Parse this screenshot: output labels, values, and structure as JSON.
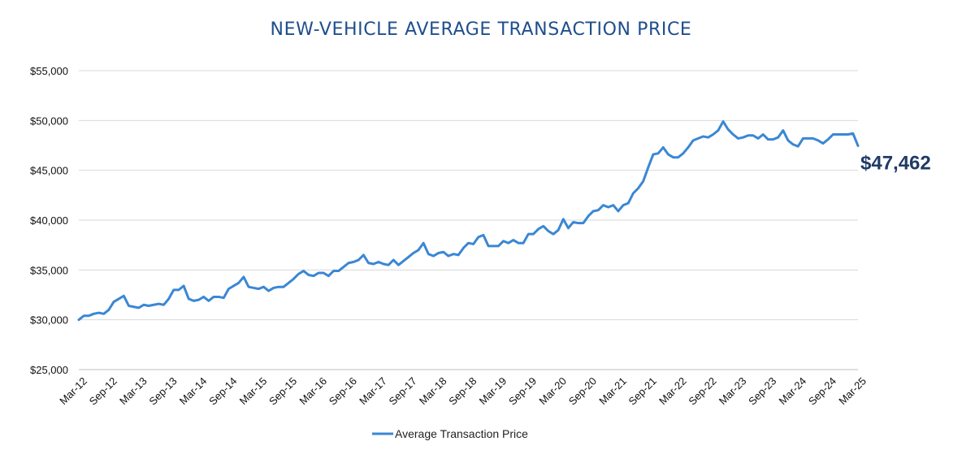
{
  "chart_data": {
    "type": "line",
    "title": "NEW-VEHICLE AVERAGE TRANSACTION PRICE",
    "xlabel": "",
    "ylabel": "",
    "ylim": [
      25000,
      55000
    ],
    "y_ticks": [
      25000,
      30000,
      35000,
      40000,
      45000,
      50000,
      55000
    ],
    "y_tick_labels": [
      "$25,000",
      "$30,000",
      "$35,000",
      "$40,000",
      "$45,000",
      "$50,000",
      "$55,000"
    ],
    "x_tick_labels": [
      "Mar-12",
      "Sep-12",
      "Mar-13",
      "Sep-13",
      "Mar-14",
      "Sep-14",
      "Mar-15",
      "Sep-15",
      "Mar-16",
      "Sep-16",
      "Mar-17",
      "Sep-17",
      "Mar-18",
      "Sep-18",
      "Mar-19",
      "Sep-19",
      "Mar-20",
      "Sep-20",
      "Mar-21",
      "Sep-21",
      "Mar-22",
      "Sep-22",
      "Mar-23",
      "Sep-23",
      "Mar-24",
      "Sep-24",
      "Mar-25"
    ],
    "grid": true,
    "legend_position": "bottom-center",
    "series": [
      {
        "name": "Average Transaction Price",
        "color": "#3a87d4",
        "values": [
          30000,
          30400,
          30400,
          30600,
          30700,
          30600,
          31000,
          31800,
          32100,
          32400,
          31400,
          31300,
          31200,
          31500,
          31400,
          31500,
          31600,
          31500,
          32100,
          33000,
          33000,
          33400,
          32100,
          31900,
          32000,
          32300,
          31900,
          32300,
          32300,
          32200,
          33100,
          33400,
          33700,
          34300,
          33300,
          33200,
          33100,
          33300,
          32900,
          33200,
          33300,
          33300,
          33700,
          34100,
          34600,
          34900,
          34500,
          34400,
          34700,
          34700,
          34400,
          34900,
          34900,
          35300,
          35700,
          35800,
          36000,
          36500,
          35700,
          35600,
          35800,
          35600,
          35500,
          36000,
          35500,
          35900,
          36300,
          36700,
          37000,
          37700,
          36600,
          36400,
          36700,
          36800,
          36400,
          36600,
          36500,
          37200,
          37700,
          37600,
          38300,
          38500,
          37400,
          37400,
          37400,
          37900,
          37700,
          38000,
          37700,
          37700,
          38600,
          38600,
          39100,
          39400,
          38900,
          38600,
          39000,
          40100,
          39200,
          39800,
          39700,
          39700,
          40400,
          40900,
          41000,
          41500,
          41300,
          41500,
          40900,
          41500,
          41700,
          42700,
          43200,
          43900,
          45300,
          46600,
          46700,
          47300,
          46600,
          46300,
          46300,
          46700,
          47300,
          48000,
          48200,
          48400,
          48300,
          48600,
          49000,
          49900,
          49100,
          48600,
          48200,
          48300,
          48500,
          48500,
          48200,
          48600,
          48100,
          48100,
          48300,
          49000,
          48000,
          47600,
          47400,
          48200,
          48200,
          48200,
          48000,
          47700,
          48100,
          48600,
          48600,
          48600,
          48600,
          48700,
          47462
        ]
      }
    ],
    "end_annotation": "$47,462",
    "legend": [
      "Average Transaction Price"
    ]
  }
}
